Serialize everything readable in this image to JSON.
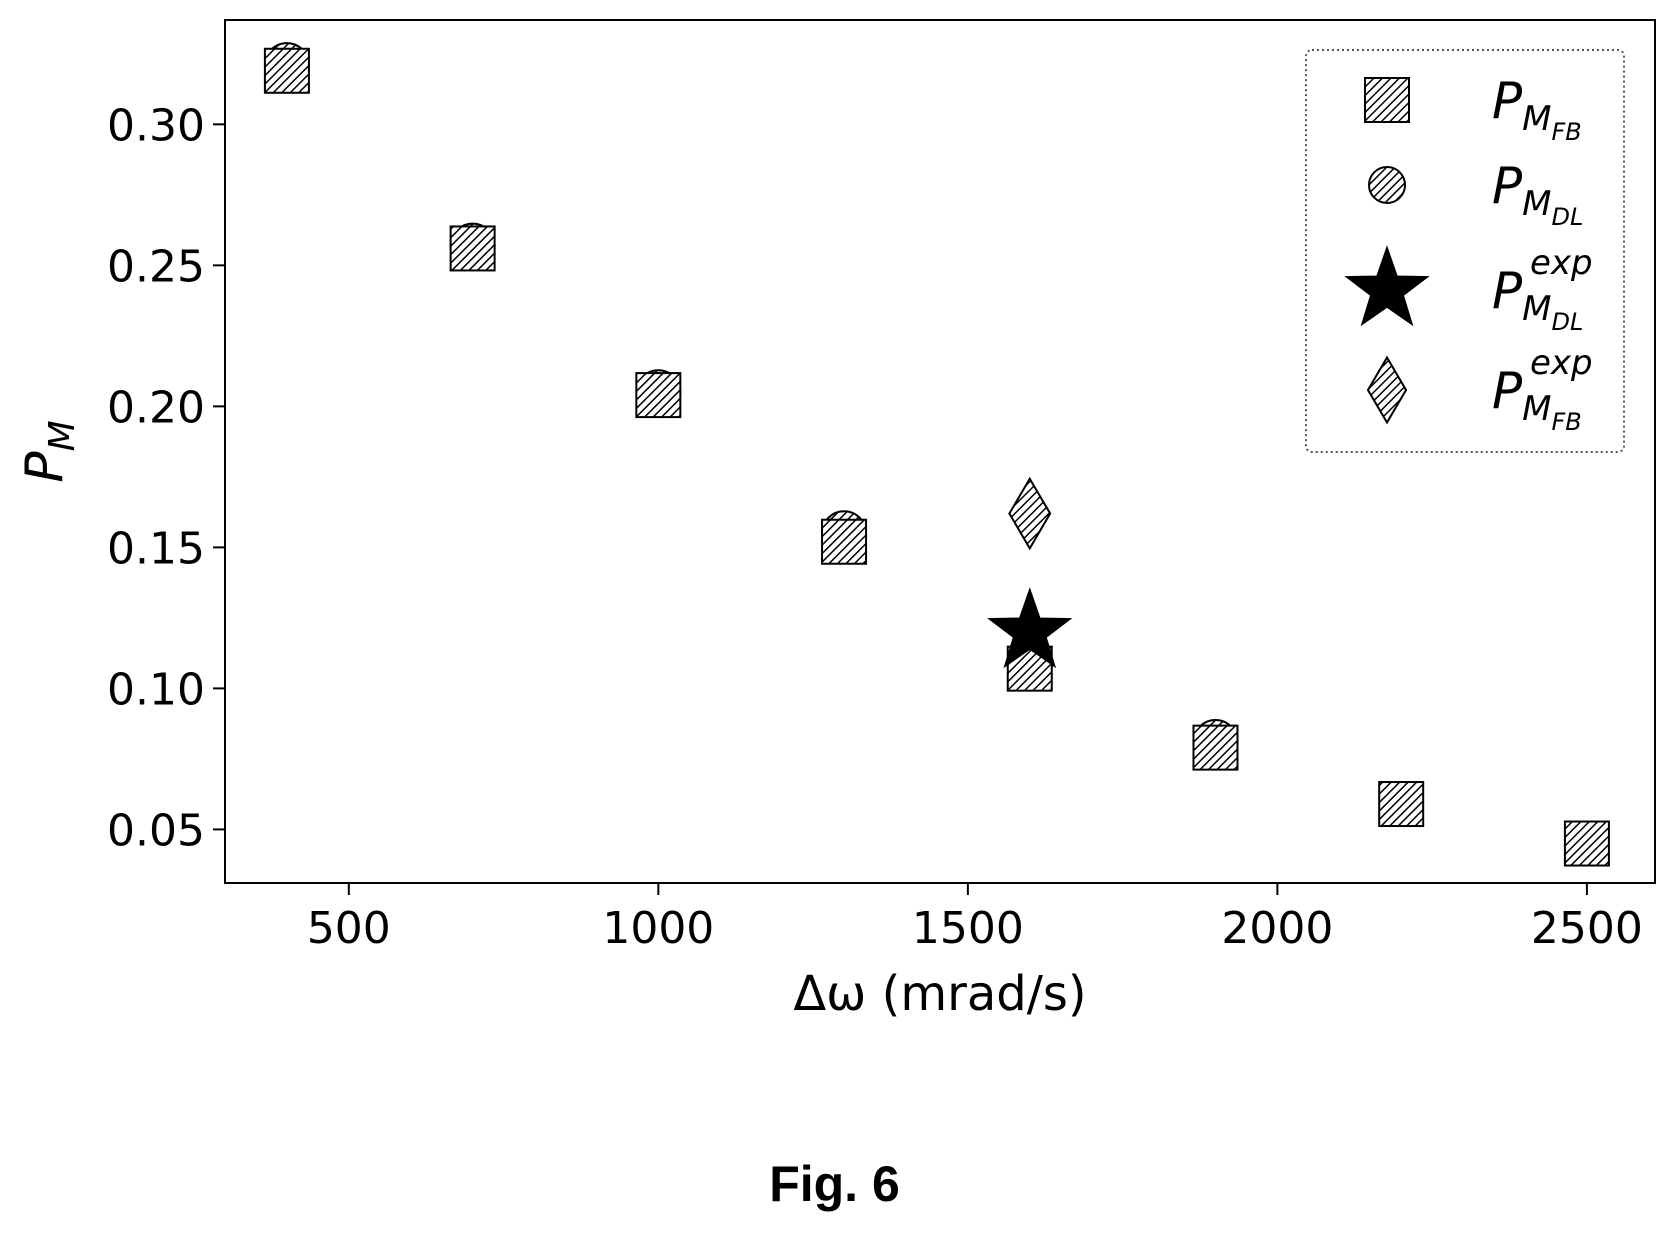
{
  "figure_caption": "Fig. 6",
  "chart_data": {
    "type": "scatter",
    "xlabel": "Δω (mrad/s)",
    "ylabel": {
      "base": "P",
      "sub": "M"
    },
    "xlim": [
      300,
      2610
    ],
    "ylim": [
      0.031,
      0.337
    ],
    "x_ticks": [
      500,
      1000,
      1500,
      2000,
      2500
    ],
    "y_ticks": [
      0.05,
      0.1,
      0.15,
      0.2,
      0.25,
      0.3
    ],
    "y_tick_labels": [
      "0.05",
      "0.10",
      "0.15",
      "0.20",
      "0.25",
      "0.30"
    ],
    "grid": false,
    "legend_position": "top-right",
    "series": [
      {
        "name": {
          "base": "P",
          "sub": "M",
          "subsub": "FB",
          "sup": ""
        },
        "marker": "square",
        "fill": "hatched",
        "x": [
          400,
          700,
          1000,
          1300,
          1600,
          1900,
          2200,
          2500
        ],
        "y": [
          0.319,
          0.256,
          0.204,
          0.152,
          0.107,
          0.079,
          0.059,
          0.045
        ]
      },
      {
        "name": {
          "base": "P",
          "sub": "M",
          "subsub": "DL",
          "sup": ""
        },
        "marker": "circle",
        "fill": "hatched",
        "x": [
          400,
          700,
          1000,
          1300,
          1600,
          1900
        ],
        "y": [
          0.321,
          0.257,
          0.205,
          0.155,
          0.108,
          0.081
        ]
      },
      {
        "name": {
          "base": "P",
          "sub": "M",
          "subsub": "DL",
          "sup": "exp"
        },
        "marker": "star",
        "fill": "black",
        "x": [
          1600
        ],
        "y": [
          0.12
        ]
      },
      {
        "name": {
          "base": "P",
          "sub": "M",
          "subsub": "FB",
          "sup": "exp"
        },
        "marker": "diamond",
        "fill": "hatched",
        "x": [
          1600
        ],
        "y": [
          0.162
        ]
      }
    ]
  }
}
